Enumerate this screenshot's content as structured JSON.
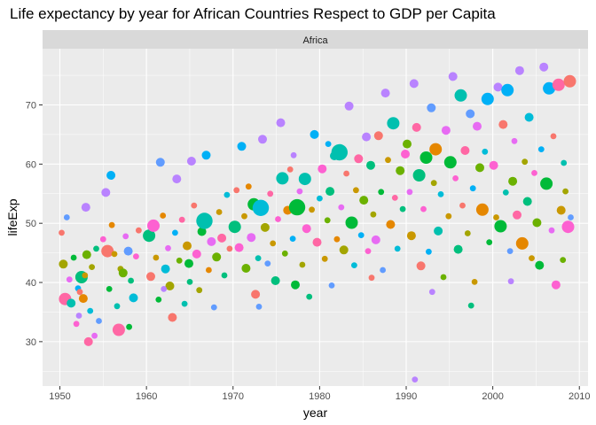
{
  "chart_data": {
    "type": "scatter",
    "title": "Life expectancy by year for African Countries Respect to GDP per Capita",
    "facet": "Africa",
    "xlabel": "year",
    "ylabel": "lifeExp",
    "xlim": [
      1948,
      2011
    ],
    "ylim": [
      22.5,
      79.5
    ],
    "x_ticks": [
      1950,
      1960,
      1970,
      1980,
      1990,
      2000,
      2010
    ],
    "y_ticks": [
      30,
      40,
      50,
      60,
      70
    ],
    "grid": true,
    "legend": "none",
    "colors": {
      "panel": "#ebebeb",
      "strip": "#d9d9d9",
      "grid_major": "#ffffff",
      "tick": "#333333",
      "palette": [
        "#f8766d",
        "#e58700",
        "#c99800",
        "#a3a500",
        "#6bb100",
        "#00ba38",
        "#00bf7d",
        "#00c0af",
        "#00bcd8",
        "#00b0f6",
        "#619cff",
        "#b983ff",
        "#e76bf3",
        "#fd61d1",
        "#ff67a4"
      ]
    },
    "points": [
      [
        1950.2,
        48.4,
        1,
        0
      ],
      [
        1950.4,
        43.1,
        2,
        3
      ],
      [
        1950.6,
        37.2,
        3,
        14
      ],
      [
        1950.8,
        51.0,
        1,
        10
      ],
      [
        1951.1,
        40.5,
        1,
        12
      ],
      [
        1951.3,
        36.5,
        2,
        7
      ],
      [
        1951.6,
        44.2,
        1,
        5
      ],
      [
        1951.9,
        33.0,
        1,
        13
      ],
      [
        1952.1,
        39.0,
        1,
        9
      ],
      [
        1952.3,
        38.4,
        1,
        0
      ],
      [
        1952.5,
        40.9,
        3,
        6
      ],
      [
        1952.7,
        37.3,
        2,
        1
      ],
      [
        1952.9,
        41.2,
        1,
        2
      ],
      [
        1953.1,
        44.7,
        2,
        4
      ],
      [
        1953.3,
        30.0,
        2,
        14
      ],
      [
        1953.0,
        52.7,
        2,
        11
      ],
      [
        1953.5,
        35.2,
        1,
        8
      ],
      [
        1953.7,
        42.6,
        1,
        3
      ],
      [
        1954.0,
        31.0,
        1,
        12
      ],
      [
        1954.2,
        45.7,
        1,
        6
      ],
      [
        1954.5,
        33.5,
        1,
        10
      ],
      [
        1955.0,
        47.3,
        1,
        13
      ],
      [
        1955.3,
        55.2,
        2,
        11
      ],
      [
        1955.5,
        45.3,
        3,
        0
      ],
      [
        1955.7,
        38.9,
        1,
        5
      ],
      [
        1956.0,
        49.7,
        1,
        1
      ],
      [
        1955.9,
        58.1,
        2,
        9
      ],
      [
        1956.3,
        44.8,
        1,
        2
      ],
      [
        1956.6,
        36.0,
        1,
        7
      ],
      [
        1956.8,
        32.0,
        3,
        14
      ],
      [
        1957.0,
        42.3,
        1,
        3
      ],
      [
        1957.3,
        41.6,
        2,
        4
      ],
      [
        1957.6,
        47.8,
        1,
        12
      ],
      [
        1957.9,
        45.3,
        2,
        10
      ],
      [
        1958.2,
        40.3,
        1,
        6
      ],
      [
        1958.5,
        37.4,
        2,
        8
      ],
      [
        1958.8,
        44.4,
        1,
        13
      ],
      [
        1959.1,
        48.8,
        1,
        0
      ],
      [
        1952.2,
        34.4,
        1,
        11
      ],
      [
        1958.0,
        32.5,
        1,
        5
      ],
      [
        1960.3,
        47.9,
        3,
        6
      ],
      [
        1960.5,
        41.0,
        2,
        0
      ],
      [
        1960.8,
        49.6,
        3,
        13
      ],
      [
        1961.1,
        44.2,
        1,
        2
      ],
      [
        1961.4,
        37.1,
        1,
        5
      ],
      [
        1961.6,
        60.3,
        2,
        10
      ],
      [
        1961.9,
        51.3,
        1,
        1
      ],
      [
        1962.2,
        42.3,
        2,
        8
      ],
      [
        1962.5,
        45.8,
        1,
        12
      ],
      [
        1962.7,
        39.4,
        2,
        3
      ],
      [
        1963.0,
        34.1,
        2,
        0
      ],
      [
        1963.3,
        48.4,
        1,
        9
      ],
      [
        1963.5,
        57.5,
        2,
        11
      ],
      [
        1963.8,
        43.7,
        1,
        4
      ],
      [
        1964.1,
        50.6,
        1,
        14
      ],
      [
        1964.4,
        36.4,
        1,
        7
      ],
      [
        1964.7,
        46.2,
        2,
        2
      ],
      [
        1965.0,
        40.1,
        1,
        6
      ],
      [
        1965.2,
        60.5,
        2,
        11
      ],
      [
        1965.5,
        53.0,
        1,
        0
      ],
      [
        1965.8,
        44.8,
        2,
        13
      ],
      [
        1966.1,
        38.7,
        1,
        3
      ],
      [
        1966.4,
        48.6,
        2,
        5
      ],
      [
        1966.7,
        50.4,
        4,
        7
      ],
      [
        1966.9,
        61.5,
        2,
        9
      ],
      [
        1967.2,
        42.1,
        1,
        1
      ],
      [
        1967.5,
        46.9,
        2,
        12
      ],
      [
        1967.8,
        35.8,
        1,
        10
      ],
      [
        1968.1,
        44.3,
        2,
        4
      ],
      [
        1968.4,
        51.9,
        1,
        2
      ],
      [
        1968.7,
        47.5,
        2,
        14
      ],
      [
        1969.0,
        41.2,
        1,
        6
      ],
      [
        1969.3,
        54.8,
        1,
        8
      ],
      [
        1969.6,
        45.7,
        1,
        0
      ],
      [
        1962.0,
        38.9,
        1,
        11
      ],
      [
        1964.9,
        43.2,
        2,
        5
      ],
      [
        1970.2,
        49.4,
        3,
        6
      ],
      [
        1970.4,
        55.6,
        1,
        0
      ],
      [
        1970.7,
        45.9,
        2,
        13
      ],
      [
        1971.0,
        63.0,
        2,
        9
      ],
      [
        1971.3,
        51.2,
        1,
        2
      ],
      [
        1971.5,
        42.4,
        2,
        4
      ],
      [
        1971.8,
        56.2,
        1,
        1
      ],
      [
        1972.1,
        47.6,
        2,
        12
      ],
      [
        1972.4,
        53.2,
        3,
        5
      ],
      [
        1972.6,
        38.0,
        2,
        0
      ],
      [
        1972.9,
        44.1,
        1,
        7
      ],
      [
        1973.2,
        52.6,
        4,
        8
      ],
      [
        1973.4,
        64.2,
        2,
        11
      ],
      [
        1973.7,
        49.3,
        2,
        3
      ],
      [
        1974.0,
        43.2,
        1,
        10
      ],
      [
        1974.3,
        55.0,
        1,
        14
      ],
      [
        1974.6,
        46.6,
        1,
        2
      ],
      [
        1974.9,
        40.3,
        2,
        6
      ],
      [
        1975.2,
        50.7,
        1,
        13
      ],
      [
        1975.5,
        67.0,
        2,
        11
      ],
      [
        1975.7,
        57.6,
        3,
        7
      ],
      [
        1976.0,
        44.9,
        1,
        4
      ],
      [
        1976.3,
        52.2,
        2,
        1
      ],
      [
        1976.6,
        59.1,
        1,
        0
      ],
      [
        1976.9,
        47.4,
        1,
        9
      ],
      [
        1977.2,
        39.6,
        2,
        5
      ],
      [
        1977.4,
        52.7,
        4,
        5
      ],
      [
        1977.7,
        55.4,
        1,
        12
      ],
      [
        1978.0,
        43.0,
        1,
        3
      ],
      [
        1978.3,
        57.5,
        3,
        7
      ],
      [
        1978.5,
        49.1,
        2,
        13
      ],
      [
        1978.8,
        37.6,
        1,
        6
      ],
      [
        1979.1,
        52.3,
        1,
        2
      ],
      [
        1979.4,
        65.0,
        2,
        9
      ],
      [
        1979.7,
        46.8,
        2,
        14
      ],
      [
        1980.0,
        54.2,
        1,
        8
      ],
      [
        1973.0,
        35.9,
        1,
        10
      ],
      [
        1977.0,
        61.5,
        1,
        11
      ],
      [
        1980.3,
        59.2,
        2,
        13
      ],
      [
        1980.6,
        44.0,
        1,
        2
      ],
      [
        1980.9,
        50.5,
        1,
        4
      ],
      [
        1981.2,
        55.4,
        2,
        6
      ],
      [
        1981.4,
        39.5,
        1,
        10
      ],
      [
        1981.7,
        61.4,
        2,
        7
      ],
      [
        1982.0,
        47.3,
        1,
        1
      ],
      [
        1982.3,
        62.0,
        4,
        7
      ],
      [
        1982.5,
        52.7,
        1,
        12
      ],
      [
        1982.8,
        45.5,
        2,
        3
      ],
      [
        1983.1,
        58.4,
        1,
        0
      ],
      [
        1983.4,
        69.8,
        2,
        11
      ],
      [
        1983.7,
        50.1,
        3,
        5
      ],
      [
        1984.0,
        42.9,
        1,
        8
      ],
      [
        1984.2,
        55.6,
        1,
        2
      ],
      [
        1984.5,
        60.9,
        2,
        14
      ],
      [
        1984.8,
        48.0,
        1,
        9
      ],
      [
        1985.1,
        53.9,
        2,
        4
      ],
      [
        1985.4,
        64.6,
        2,
        11
      ],
      [
        1985.6,
        45.3,
        1,
        13
      ],
      [
        1985.9,
        59.8,
        2,
        6
      ],
      [
        1986.2,
        51.5,
        1,
        3
      ],
      [
        1986.5,
        47.2,
        2,
        12
      ],
      [
        1986.8,
        64.8,
        2,
        0
      ],
      [
        1987.1,
        55.3,
        1,
        5
      ],
      [
        1987.3,
        42.1,
        1,
        10
      ],
      [
        1987.6,
        72.0,
        2,
        11
      ],
      [
        1987.9,
        60.7,
        1,
        2
      ],
      [
        1988.2,
        49.8,
        2,
        1
      ],
      [
        1988.5,
        66.9,
        3,
        7
      ],
      [
        1988.7,
        54.3,
        1,
        14
      ],
      [
        1989.0,
        45.7,
        1,
        8
      ],
      [
        1989.3,
        58.9,
        2,
        4
      ],
      [
        1989.6,
        52.4,
        1,
        6
      ],
      [
        1989.9,
        61.7,
        2,
        13
      ],
      [
        1981.0,
        63.4,
        1,
        9
      ],
      [
        1986.0,
        40.8,
        1,
        0
      ],
      [
        1990.1,
        63.4,
        2,
        4
      ],
      [
        1990.4,
        55.3,
        1,
        12
      ],
      [
        1990.6,
        47.9,
        2,
        2
      ],
      [
        1990.9,
        73.6,
        2,
        11
      ],
      [
        1991.2,
        66.2,
        2,
        14
      ],
      [
        1991.5,
        58.1,
        3,
        6
      ],
      [
        1991.7,
        42.8,
        2,
        0
      ],
      [
        1991.0,
        23.6,
        1,
        11
      ],
      [
        1992.0,
        52.4,
        1,
        13
      ],
      [
        1992.3,
        61.1,
        3,
        5
      ],
      [
        1992.6,
        45.2,
        1,
        9
      ],
      [
        1992.9,
        69.5,
        2,
        10
      ],
      [
        1993.2,
        56.8,
        1,
        3
      ],
      [
        1993.4,
        62.5,
        3,
        1
      ],
      [
        1993.7,
        48.7,
        2,
        7
      ],
      [
        1994.0,
        54.9,
        1,
        8
      ],
      [
        1994.3,
        40.9,
        1,
        4
      ],
      [
        1994.6,
        65.7,
        2,
        12
      ],
      [
        1994.9,
        51.2,
        1,
        2
      ],
      [
        1995.1,
        60.3,
        3,
        5
      ],
      [
        1995.4,
        74.8,
        2,
        11
      ],
      [
        1995.7,
        57.6,
        1,
        13
      ],
      [
        1996.0,
        45.6,
        2,
        6
      ],
      [
        1996.3,
        71.6,
        3,
        7
      ],
      [
        1996.5,
        53.0,
        1,
        0
      ],
      [
        1996.8,
        62.3,
        2,
        14
      ],
      [
        1997.1,
        48.3,
        1,
        3
      ],
      [
        1997.4,
        68.5,
        2,
        10
      ],
      [
        1997.7,
        55.9,
        1,
        9
      ],
      [
        1997.9,
        40.1,
        1,
        2
      ],
      [
        1998.2,
        66.4,
        2,
        12
      ],
      [
        1998.5,
        59.4,
        2,
        4
      ],
      [
        1998.8,
        52.3,
        3,
        1
      ],
      [
        1999.1,
        62.1,
        1,
        8
      ],
      [
        1999.4,
        71.0,
        3,
        9
      ],
      [
        1999.6,
        46.8,
        1,
        5
      ],
      [
        1993.0,
        38.4,
        1,
        11
      ],
      [
        1997.5,
        36.1,
        1,
        6
      ],
      [
        2000.1,
        59.8,
        2,
        13
      ],
      [
        2000.4,
        51.0,
        1,
        2
      ],
      [
        2000.6,
        73.0,
        2,
        11
      ],
      [
        2000.9,
        49.5,
        3,
        5
      ],
      [
        2001.2,
        66.7,
        2,
        0
      ],
      [
        2001.5,
        55.2,
        1,
        7
      ],
      [
        2001.7,
        72.5,
        3,
        9
      ],
      [
        2002.0,
        45.3,
        1,
        10
      ],
      [
        2002.3,
        57.1,
        2,
        4
      ],
      [
        2002.5,
        63.9,
        1,
        12
      ],
      [
        2002.8,
        51.4,
        2,
        14
      ],
      [
        2003.1,
        75.8,
        2,
        11
      ],
      [
        2003.4,
        46.6,
        3,
        1
      ],
      [
        2003.7,
        60.4,
        1,
        3
      ],
      [
        2004.0,
        53.7,
        2,
        6
      ],
      [
        2004.2,
        67.9,
        2,
        8
      ],
      [
        2004.5,
        44.1,
        1,
        2
      ],
      [
        2004.8,
        58.5,
        1,
        13
      ],
      [
        2005.1,
        50.1,
        2,
        4
      ],
      [
        2005.4,
        42.9,
        2,
        5
      ],
      [
        2005.6,
        62.5,
        1,
        9
      ],
      [
        2005.9,
        76.4,
        2,
        11
      ],
      [
        2006.2,
        56.7,
        3,
        5
      ],
      [
        2006.5,
        72.8,
        3,
        9
      ],
      [
        2006.8,
        48.8,
        1,
        12
      ],
      [
        2007.0,
        64.7,
        1,
        0
      ],
      [
        2007.3,
        39.6,
        2,
        13
      ],
      [
        2007.6,
        73.4,
        3,
        14
      ],
      [
        2007.9,
        52.2,
        2,
        2
      ],
      [
        2008.2,
        60.2,
        1,
        7
      ],
      [
        2008.4,
        55.4,
        1,
        3
      ],
      [
        2008.7,
        49.4,
        3,
        13
      ],
      [
        2008.9,
        74.0,
        3,
        0
      ],
      [
        2009.0,
        51.0,
        1,
        10
      ],
      [
        2008.1,
        43.8,
        1,
        4
      ],
      [
        2002.1,
        40.2,
        1,
        11
      ]
    ]
  }
}
